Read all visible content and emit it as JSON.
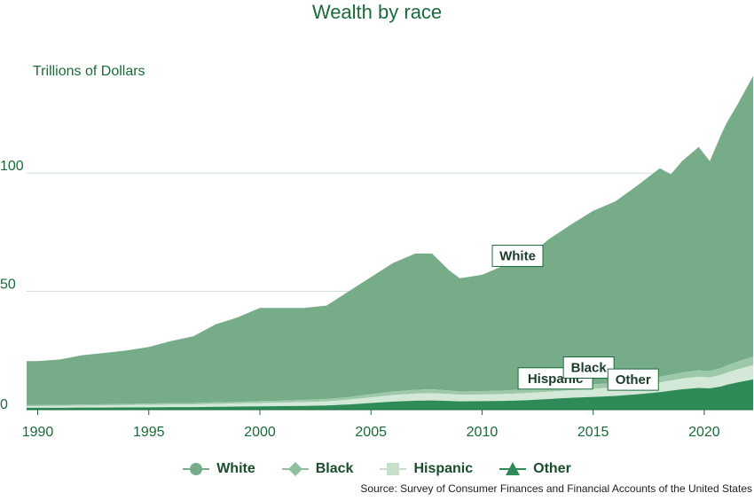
{
  "chart_data": {
    "type": "area",
    "stacked": true,
    "title": "Wealth by race",
    "ylabel": "Trillions of Dollars",
    "xlim": [
      1989.5,
      2022.2
    ],
    "ylim": [
      0,
      145
    ],
    "x_ticks": [
      1990,
      1995,
      2000,
      2005,
      2010,
      2015,
      2020
    ],
    "y_ticks": [
      0,
      50,
      100
    ],
    "grid": "horizontal",
    "legend_position": "bottom",
    "source": "Source: Survey of Consumer Finances and Financial Accounts of the United States",
    "x": [
      1989.5,
      1990,
      1991,
      1992,
      1993,
      1994,
      1995,
      1996,
      1997,
      1998,
      1999,
      2000,
      2001,
      2002,
      2003,
      2004,
      2005,
      2006,
      2007,
      2007.75,
      2008.5,
      2009,
      2010,
      2011,
      2012,
      2013,
      2014,
      2015,
      2016,
      2017,
      2018,
      2018.5,
      2019,
      2019.75,
      2020.25,
      2020.75,
      2021,
      2021.5,
      2022.2
    ],
    "series": [
      {
        "name": "Other",
        "color": "#2e8b57",
        "marker": "triangle",
        "values": [
          0.8,
          0.8,
          0.8,
          0.9,
          0.9,
          1.0,
          1.0,
          1.1,
          1.1,
          1.2,
          1.3,
          1.4,
          1.5,
          1.6,
          1.8,
          2.2,
          2.8,
          3.4,
          3.8,
          3.9,
          3.7,
          3.5,
          3.6,
          3.7,
          4.0,
          4.5,
          5.0,
          5.4,
          5.8,
          6.5,
          7.4,
          8.0,
          8.6,
          9.2,
          9.0,
          9.8,
          10.5,
          11.5,
          12.8
        ]
      },
      {
        "name": "Hispanic",
        "color": "#d3e8d6",
        "marker": "square",
        "values": [
          0.7,
          0.7,
          0.8,
          0.8,
          0.9,
          0.9,
          1.0,
          1.0,
          1.1,
          1.2,
          1.3,
          1.4,
          1.5,
          1.6,
          1.7,
          2.0,
          2.4,
          2.8,
          3.0,
          3.1,
          2.9,
          2.8,
          2.8,
          2.9,
          3.0,
          3.1,
          3.2,
          3.4,
          3.6,
          3.8,
          4.1,
          4.3,
          4.5,
          4.7,
          4.6,
          4.9,
          5.1,
          5.5,
          6.0
        ]
      },
      {
        "name": "Black",
        "color": "#9ec9a9",
        "marker": "diamond",
        "values": [
          0.4,
          0.4,
          0.4,
          0.5,
          0.5,
          0.5,
          0.6,
          0.6,
          0.6,
          0.7,
          0.7,
          0.8,
          0.8,
          0.9,
          1.0,
          1.1,
          1.3,
          1.5,
          1.6,
          1.6,
          1.5,
          1.4,
          1.4,
          1.5,
          1.6,
          1.7,
          1.8,
          1.9,
          2.0,
          2.2,
          2.4,
          2.5,
          2.6,
          2.7,
          2.7,
          2.9,
          3.0,
          3.3,
          3.6
        ]
      },
      {
        "name": "White",
        "color": "#77ac89",
        "marker": "circle",
        "values": [
          18.6,
          18.6,
          19.2,
          20.8,
          21.7,
          22.6,
          23.9,
          26.3,
          28.2,
          32.9,
          35.7,
          39.4,
          39.2,
          38.9,
          39.5,
          44.7,
          49.5,
          54.3,
          57.6,
          57.4,
          50.9,
          47.8,
          49.2,
          52.9,
          55.4,
          62.7,
          68.2,
          73.3,
          76.6,
          82.3,
          88.1,
          84.7,
          89.3,
          94.4,
          88.7,
          98.4,
          102.4,
          108.7,
          118.6
        ]
      }
    ],
    "annotations": [
      {
        "label": "White",
        "x": 2011.6,
        "y": 62
      },
      {
        "label": "Hispanic",
        "x": 2013.3,
        "y": 10.2
      },
      {
        "label": "Black",
        "x": 2014.8,
        "y": 14.8
      },
      {
        "label": "Other",
        "x": 2016.8,
        "y": 9.7
      }
    ]
  }
}
